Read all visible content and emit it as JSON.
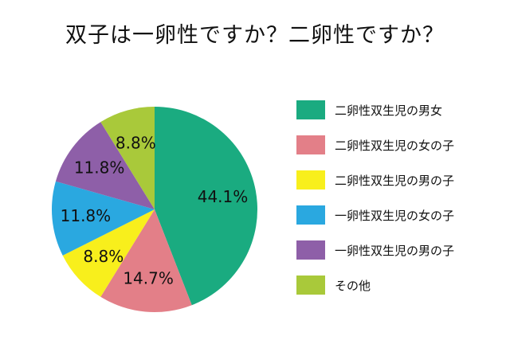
{
  "chart_data": {
    "type": "pie",
    "title": "双子は一卵性ですか？二卵性ですか？",
    "categories": [
      "二卵性双生児の男女",
      "二卵性双生児の女の子",
      "二卵性双生児の男の子",
      "一卵性双生児の女の子",
      "一卵性双生児の男の子",
      "その他"
    ],
    "values": [
      44.1,
      14.7,
      8.8,
      11.8,
      11.8,
      8.8
    ],
    "value_labels": [
      "44.1%",
      "14.7%",
      "8.8%",
      "11.8%",
      "11.8%",
      "8.8%"
    ],
    "colors": [
      "#1aab80",
      "#e37f88",
      "#f8ef1c",
      "#2aa8e0",
      "#8e5fa8",
      "#a9c93a"
    ],
    "start": "12 o'clock",
    "direction": "clockwise",
    "legend_position": "right"
  }
}
